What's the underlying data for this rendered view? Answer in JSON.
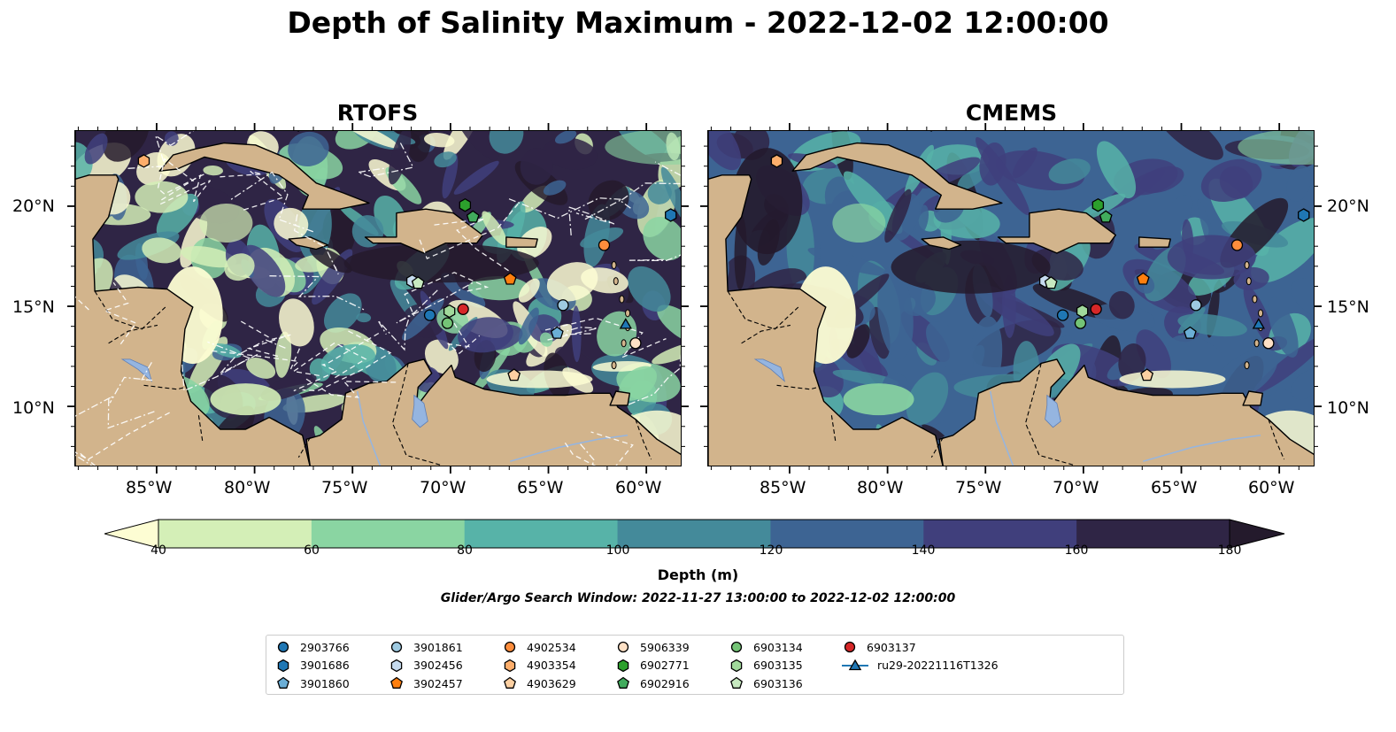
{
  "title": "Depth of Salinity Maximum - 2022-12-02 12:00:00",
  "panels": [
    {
      "id": "rtofs",
      "title": "RTOFS"
    },
    {
      "id": "cmems",
      "title": "CMEMS"
    }
  ],
  "axes": {
    "lon_ticks": [
      "85°W",
      "80°W",
      "75°W",
      "70°W",
      "65°W",
      "60°W"
    ],
    "lat_ticks": [
      "20°N",
      "15°N",
      "10°N"
    ]
  },
  "colorbar": {
    "label": "Depth (m)",
    "ticks": [
      "40",
      "60",
      "80",
      "100",
      "120",
      "140",
      "160",
      "180"
    ],
    "colors": [
      "#d4efb7",
      "#8ad5a2",
      "#57b3a8",
      "#448a9a",
      "#3d6493",
      "#403f7c",
      "#2f2545"
    ],
    "under_color": "#fdfdd3",
    "over_color": "#241a2c"
  },
  "search_window": "Glider/Argo Search Window: 2022-11-27 13:00:00 to 2022-12-02 12:00:00",
  "legend": [
    {
      "label": "2903766",
      "marker": "circle",
      "color": "#1f77b4"
    },
    {
      "label": "3901686",
      "marker": "hexagon",
      "color": "#1f77b4"
    },
    {
      "label": "3901860",
      "marker": "pentagon",
      "color": "#6baed6"
    },
    {
      "label": "3901861",
      "marker": "circle",
      "color": "#9ecae1"
    },
    {
      "label": "3902456",
      "marker": "hexagon",
      "color": "#c6dbef"
    },
    {
      "label": "3902457",
      "marker": "pentagon",
      "color": "#ff7f0e"
    },
    {
      "label": "4902534",
      "marker": "circle",
      "color": "#fd8d3c"
    },
    {
      "label": "4903354",
      "marker": "hexagon",
      "color": "#fdae6b"
    },
    {
      "label": "4903629",
      "marker": "pentagon",
      "color": "#fdd0a2"
    },
    {
      "label": "5906339",
      "marker": "circle",
      "color": "#fde0c5"
    },
    {
      "label": "6902771",
      "marker": "hexagon",
      "color": "#2ca02c"
    },
    {
      "label": "6902916",
      "marker": "pentagon",
      "color": "#41ab5d"
    },
    {
      "label": "6903134",
      "marker": "circle",
      "color": "#74c476"
    },
    {
      "label": "6903135",
      "marker": "hexagon",
      "color": "#a1d99b"
    },
    {
      "label": "6903136",
      "marker": "pentagon",
      "color": "#c7e9c0"
    },
    {
      "label": "6903137",
      "marker": "circle",
      "color": "#d62728"
    },
    {
      "label": "ru29-20221116T1326",
      "marker": "triangle-line",
      "color": "#1f77b4"
    }
  ],
  "platforms": [
    {
      "label": "2903766",
      "lon": -71.1,
      "lat": 14.6
    },
    {
      "label": "3901686",
      "lon": -58.8,
      "lat": 19.6
    },
    {
      "label": "3901860",
      "lon": -64.6,
      "lat": 13.7
    },
    {
      "label": "3901861",
      "lon": -64.3,
      "lat": 15.1
    },
    {
      "label": "3902456",
      "lon": -72.0,
      "lat": 16.3
    },
    {
      "label": "3902457",
      "lon": -67.0,
      "lat": 16.4
    },
    {
      "label": "4902534",
      "lon": -62.2,
      "lat": 18.1
    },
    {
      "label": "4903354",
      "lon": -85.7,
      "lat": 22.3
    },
    {
      "label": "4903629",
      "lon": -66.8,
      "lat": 11.6
    },
    {
      "label": "5906339",
      "lon": -60.6,
      "lat": 13.2
    },
    {
      "label": "6902771",
      "lon": -69.3,
      "lat": 20.1
    },
    {
      "label": "6902916",
      "lon": -68.9,
      "lat": 19.5
    },
    {
      "label": "6903134",
      "lon": -70.2,
      "lat": 14.2
    },
    {
      "label": "6903135",
      "lon": -70.1,
      "lat": 14.8
    },
    {
      "label": "6903136",
      "lon": -71.7,
      "lat": 16.2
    },
    {
      "label": "6903137",
      "lon": -69.4,
      "lat": 14.9
    },
    {
      "label": "ru29-20221116T1326",
      "lon": -61.1,
      "lat": 14.1
    }
  ]
}
